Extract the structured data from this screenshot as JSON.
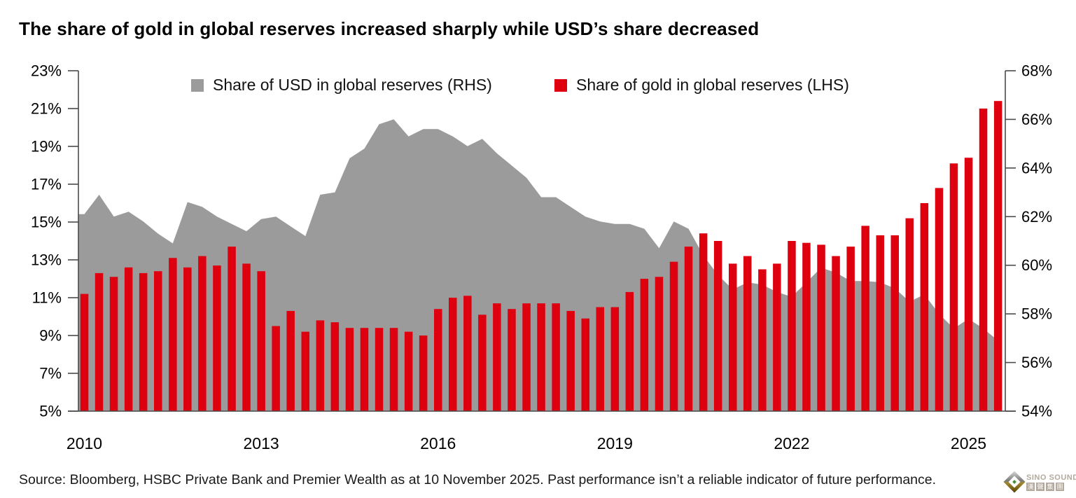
{
  "title": "The share of gold in global reserves increased sharply while USD’s share decreased",
  "legend": [
    {
      "label": "Share of USD in global reserves (RHS)",
      "series": "usd"
    },
    {
      "label": "Share of gold in global reserves (LHS)",
      "series": "gold"
    }
  ],
  "source": "Source: Bloomberg, HSBC Private Bank and Premier Wealth as at 10 November 2025. Past performance isn’t a reliable indicator of future performance.",
  "logo": {
    "name": "SINO SOUND",
    "cjk": [
      "漢",
      "聲",
      "集",
      "團"
    ]
  },
  "colors": {
    "gold_bar": "#DF000F",
    "usd_area": "#9B9B9B",
    "axis_line": "#4a4a4a",
    "tick_text": "#000000"
  },
  "chart_data": {
    "type": "bar+area combo (bars = gold share on left axis, shaded area = USD share on right axis)",
    "title": "The share of gold in global reserves increased sharply while USD’s share decreased",
    "x": [
      "2010Q1",
      "2010Q2",
      "2010Q3",
      "2010Q4",
      "2011Q1",
      "2011Q2",
      "2011Q3",
      "2011Q4",
      "2012Q1",
      "2012Q2",
      "2012Q3",
      "2012Q4",
      "2013Q1",
      "2013Q2",
      "2013Q3",
      "2013Q4",
      "2014Q1",
      "2014Q2",
      "2014Q3",
      "2014Q4",
      "2015Q1",
      "2015Q2",
      "2015Q3",
      "2015Q4",
      "2016Q1",
      "2016Q2",
      "2016Q3",
      "2016Q4",
      "2017Q1",
      "2017Q2",
      "2017Q3",
      "2017Q4",
      "2018Q1",
      "2018Q2",
      "2018Q3",
      "2018Q4",
      "2019Q1",
      "2019Q2",
      "2019Q3",
      "2019Q4",
      "2020Q1",
      "2020Q2",
      "2020Q3",
      "2020Q4",
      "2021Q1",
      "2021Q2",
      "2021Q3",
      "2021Q4",
      "2022Q1",
      "2022Q2",
      "2022Q3",
      "2022Q4",
      "2023Q1",
      "2023Q2",
      "2023Q3",
      "2023Q4",
      "2024Q1",
      "2024Q2",
      "2024Q3",
      "2024Q4",
      "2025Q1",
      "2025Q2",
      "2025Q3"
    ],
    "x_tick_labels": [
      "2010",
      "2013",
      "2016",
      "2019",
      "2022",
      "2025"
    ],
    "left_axis": {
      "min": 5,
      "max": 23,
      "step": 2,
      "suffix": "%",
      "applies_to": "gold bars (LHS)"
    },
    "right_axis": {
      "min": 54,
      "max": 68,
      "step": 2,
      "suffix": "%",
      "applies_to": "USD area (RHS)"
    },
    "grid": false,
    "legend_position": "top-center",
    "series": [
      {
        "name": "Share of gold in global reserves (LHS)",
        "type": "bar",
        "axis": "left",
        "values": [
          11.2,
          12.3,
          12.1,
          12.6,
          12.3,
          12.4,
          13.1,
          12.6,
          13.2,
          12.7,
          13.7,
          12.8,
          12.4,
          9.5,
          10.3,
          9.2,
          9.8,
          9.7,
          9.4,
          9.4,
          9.4,
          9.4,
          9.2,
          9.0,
          10.4,
          11.0,
          11.1,
          10.1,
          10.7,
          10.4,
          10.7,
          10.7,
          10.7,
          10.3,
          9.9,
          10.5,
          10.5,
          11.3,
          12.0,
          12.1,
          12.9,
          13.7,
          14.4,
          14.0,
          12.8,
          13.2,
          12.5,
          12.8,
          14.0,
          13.9,
          13.8,
          13.2,
          13.7,
          14.8,
          14.3,
          14.3,
          15.2,
          16.0,
          16.8,
          18.1,
          18.4,
          21.0,
          21.4
        ]
      },
      {
        "name": "Share of USD in global reserves (RHS)",
        "type": "area",
        "axis": "right",
        "values": [
          62.1,
          62.9,
          62.0,
          62.2,
          61.8,
          61.3,
          60.9,
          62.6,
          62.4,
          62.0,
          61.7,
          61.4,
          61.9,
          62.0,
          61.6,
          61.2,
          62.9,
          63.0,
          64.4,
          64.8,
          65.8,
          66.0,
          65.3,
          65.6,
          65.6,
          65.3,
          64.9,
          65.2,
          64.6,
          64.1,
          63.6,
          62.8,
          62.8,
          62.4,
          62.0,
          61.8,
          61.7,
          61.7,
          61.5,
          60.7,
          61.8,
          61.5,
          60.4,
          59.6,
          59.0,
          59.3,
          59.2,
          58.9,
          58.7,
          59.3,
          59.9,
          59.7,
          59.35,
          59.35,
          59.3,
          59.05,
          58.5,
          58.8,
          58.0,
          57.4,
          57.8,
          57.4,
          56.9
        ]
      }
    ]
  }
}
